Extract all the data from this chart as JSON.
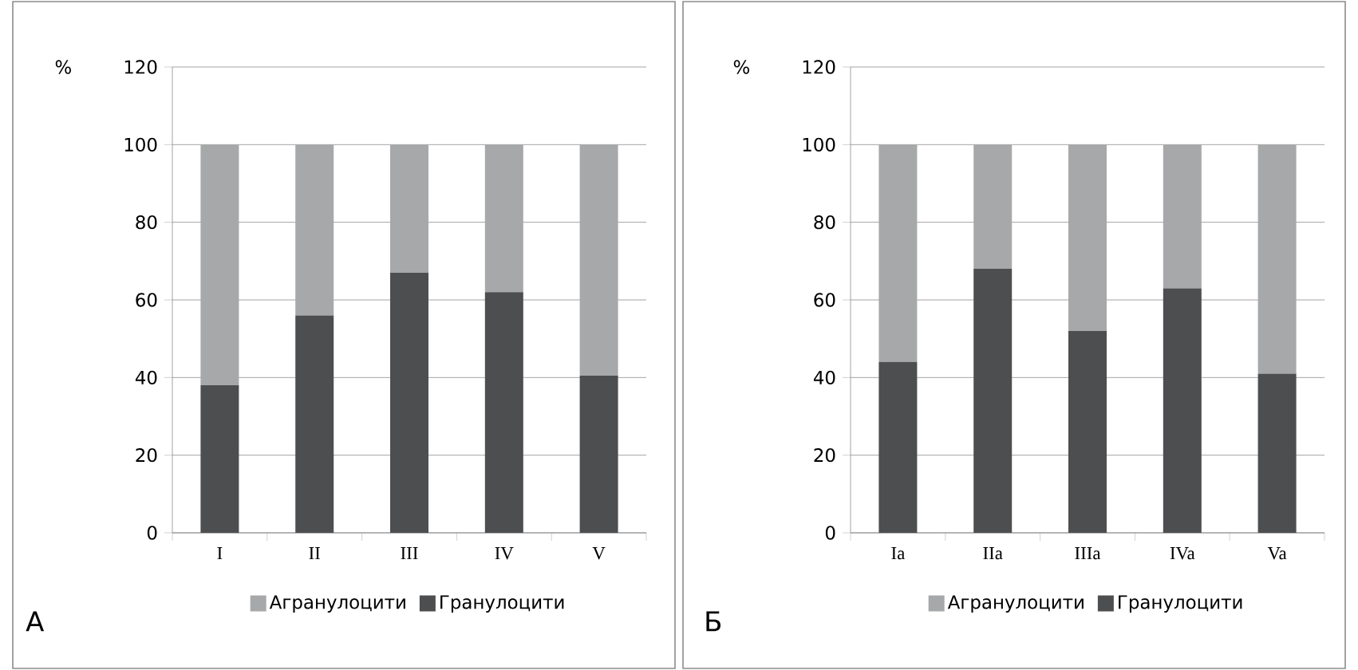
{
  "chart_data": [
    {
      "type": "bar",
      "stacked": true,
      "ylabel": "%",
      "categories": [
        "I",
        "II",
        "III",
        "IV",
        "V"
      ],
      "series": [
        {
          "name": "Гранулоцити",
          "color": "#4d4e50",
          "values": [
            38,
            56,
            67,
            62,
            40.5
          ]
        },
        {
          "name": "Агранулоцити",
          "color": "#a7a8aa",
          "values": [
            62,
            44,
            33,
            38,
            59.5
          ]
        }
      ],
      "ylim": [
        0,
        120
      ],
      "yticks": [
        0,
        20,
        40,
        60,
        80,
        100,
        120
      ],
      "grid": "y",
      "legend": "bottom",
      "annotations": [
        "А"
      ]
    },
    {
      "type": "bar",
      "stacked": true,
      "ylabel": "%",
      "categories": [
        "Ia",
        "IIa",
        "IIIa",
        "IVa",
        "Va"
      ],
      "series": [
        {
          "name": "Гранулоцити",
          "color": "#4d4e50",
          "values": [
            44,
            68,
            52,
            63,
            41
          ]
        },
        {
          "name": "Агранулоцити",
          "color": "#a7a8aa",
          "values": [
            56,
            32,
            48,
            37,
            59
          ]
        }
      ],
      "ylim": [
        0,
        120
      ],
      "yticks": [
        0,
        20,
        40,
        60,
        80,
        100,
        120
      ],
      "grid": "y",
      "legend": "bottom",
      "annotations": [
        "Б"
      ]
    }
  ]
}
